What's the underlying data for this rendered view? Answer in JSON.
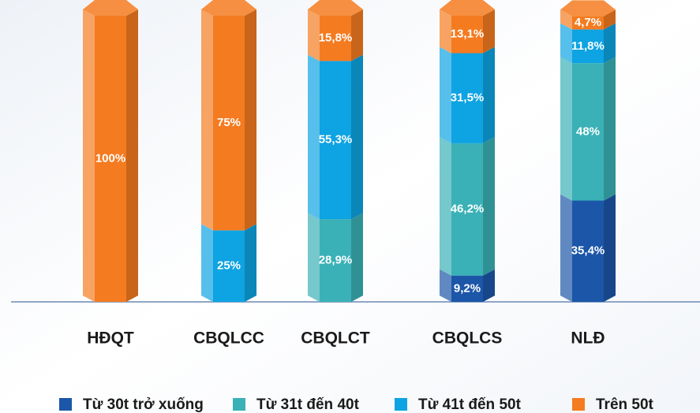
{
  "chart_data": {
    "type": "stacked-bar",
    "categories": [
      "HĐQT",
      "CBQLCC",
      "CBQLCT",
      "CBQLCS",
      "NLĐ"
    ],
    "series": [
      {
        "name": "Từ 30t trở xuống",
        "color": "#1c56a8",
        "values": [
          null,
          null,
          null,
          9.2,
          35.4
        ],
        "value_labels": [
          null,
          null,
          null,
          "9,2%",
          "35,4%"
        ]
      },
      {
        "name": "Từ 31t đến 40t",
        "color": "#3ab1b6",
        "values": [
          null,
          null,
          28.9,
          46.2,
          48
        ],
        "value_labels": [
          null,
          null,
          "28,9%",
          "46,2%",
          "48%"
        ]
      },
      {
        "name": "Từ 41t đến 50t",
        "color": "#0ea3e2",
        "values": [
          null,
          25,
          55.3,
          31.5,
          11.8
        ],
        "value_labels": [
          null,
          "25%",
          "55,3%",
          "31,5%",
          "11,8%"
        ]
      },
      {
        "name": "Trên 50t",
        "color": "#f47b20",
        "values": [
          100,
          75,
          15.8,
          13.1,
          4.7
        ],
        "value_labels": [
          "100%",
          "75%",
          "15,8%",
          "13,1%",
          "4,7%"
        ]
      }
    ],
    "ylim": [
      0,
      100
    ]
  }
}
